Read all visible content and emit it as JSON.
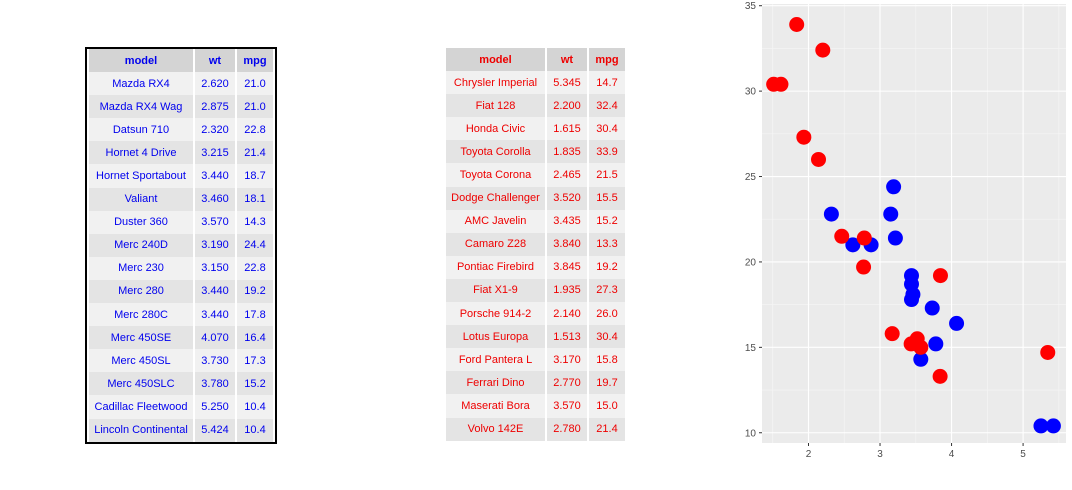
{
  "left_table": {
    "headers": [
      "model",
      "wt",
      "mpg"
    ],
    "rows": [
      [
        "Mazda RX4",
        "2.620",
        "21.0"
      ],
      [
        "Mazda RX4 Wag",
        "2.875",
        "21.0"
      ],
      [
        "Datsun 710",
        "2.320",
        "22.8"
      ],
      [
        "Hornet 4 Drive",
        "3.215",
        "21.4"
      ],
      [
        "Hornet Sportabout",
        "3.440",
        "18.7"
      ],
      [
        "Valiant",
        "3.460",
        "18.1"
      ],
      [
        "Duster 360",
        "3.570",
        "14.3"
      ],
      [
        "Merc 240D",
        "3.190",
        "24.4"
      ],
      [
        "Merc 230",
        "3.150",
        "22.8"
      ],
      [
        "Merc 280",
        "3.440",
        "19.2"
      ],
      [
        "Merc 280C",
        "3.440",
        "17.8"
      ],
      [
        "Merc 450SE",
        "4.070",
        "16.4"
      ],
      [
        "Merc 450SL",
        "3.730",
        "17.3"
      ],
      [
        "Merc 450SLC",
        "3.780",
        "15.2"
      ],
      [
        "Cadillac Fleetwood",
        "5.250",
        "10.4"
      ],
      [
        "Lincoln Continental",
        "5.424",
        "10.4"
      ]
    ],
    "color": "#0000ee"
  },
  "right_table": {
    "headers": [
      "model",
      "wt",
      "mpg"
    ],
    "rows": [
      [
        "Chrysler Imperial",
        "5.345",
        "14.7"
      ],
      [
        "Fiat 128",
        "2.200",
        "32.4"
      ],
      [
        "Honda Civic",
        "1.615",
        "30.4"
      ],
      [
        "Toyota Corolla",
        "1.835",
        "33.9"
      ],
      [
        "Toyota Corona",
        "2.465",
        "21.5"
      ],
      [
        "Dodge Challenger",
        "3.520",
        "15.5"
      ],
      [
        "AMC Javelin",
        "3.435",
        "15.2"
      ],
      [
        "Camaro Z28",
        "3.840",
        "13.3"
      ],
      [
        "Pontiac Firebird",
        "3.845",
        "19.2"
      ],
      [
        "Fiat X1-9",
        "1.935",
        "27.3"
      ],
      [
        "Porsche 914-2",
        "2.140",
        "26.0"
      ],
      [
        "Lotus Europa",
        "1.513",
        "30.4"
      ],
      [
        "Ford Pantera L",
        "3.170",
        "15.8"
      ],
      [
        "Ferrari Dino",
        "2.770",
        "19.7"
      ],
      [
        "Maserati Bora",
        "3.570",
        "15.0"
      ],
      [
        "Volvo 142E",
        "2.780",
        "21.4"
      ]
    ],
    "color": "#ee0000"
  },
  "chart_data": {
    "type": "scatter",
    "title": "",
    "xlabel": "",
    "ylabel": "",
    "xlim": [
      1.35,
      5.6
    ],
    "ylim": [
      9.4,
      35.1
    ],
    "x_ticks": [
      2,
      3,
      4,
      5
    ],
    "x_tick_labels": [
      "2",
      "3",
      "4",
      "5"
    ],
    "y_ticks": [
      10,
      15,
      20,
      25,
      30,
      35
    ],
    "y_tick_labels": [
      "10",
      "15",
      "20",
      "25",
      "30",
      "35"
    ],
    "grid": true,
    "legend": "none",
    "panel_background": "#ebebeb",
    "series": [
      {
        "color": "#0000ff",
        "x": [
          2.62,
          2.875,
          2.32,
          3.215,
          3.44,
          3.46,
          3.57,
          3.19,
          3.15,
          3.44,
          3.44,
          4.07,
          3.73,
          3.78,
          5.25,
          5.424
        ],
        "y": [
          21.0,
          21.0,
          22.8,
          21.4,
          18.7,
          18.1,
          14.3,
          24.4,
          22.8,
          19.2,
          17.8,
          16.4,
          17.3,
          15.2,
          10.4,
          10.4
        ]
      },
      {
        "color": "#ff0000",
        "x": [
          5.345,
          2.2,
          1.615,
          1.835,
          2.465,
          3.52,
          3.435,
          3.84,
          3.845,
          1.935,
          2.14,
          1.513,
          3.17,
          2.77,
          3.57,
          2.78
        ],
        "y": [
          14.7,
          32.4,
          30.4,
          33.9,
          21.5,
          15.5,
          15.2,
          13.3,
          19.2,
          27.3,
          26.0,
          30.4,
          15.8,
          19.7,
          15.0,
          21.4
        ]
      }
    ]
  }
}
